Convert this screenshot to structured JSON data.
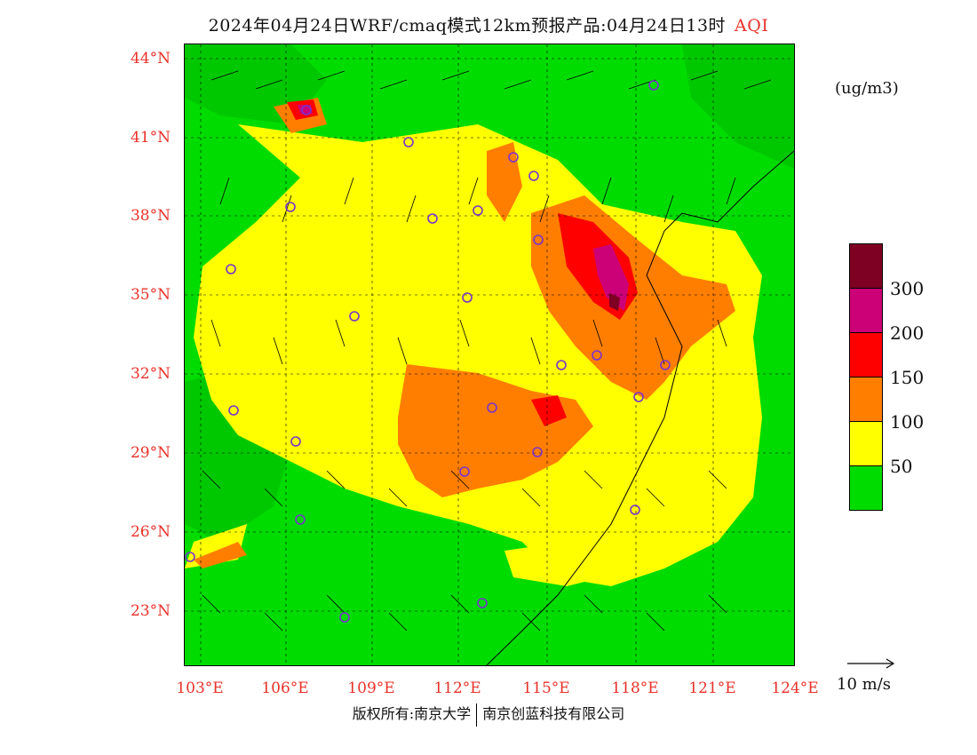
{
  "title": {
    "main": "2024年04月24日WRF/cmaq模式12km预报产品:04月24日13时",
    "variable": "AQI"
  },
  "map": {
    "latitude_labels": [
      "44°N",
      "41°N",
      "38°N",
      "35°N",
      "32°N",
      "29°N",
      "26°N",
      "23°N"
    ],
    "longitude_labels": [
      "103°E",
      "106°E",
      "109°E",
      "112°E",
      "115°E",
      "118°E",
      "121°E",
      "124°E"
    ],
    "region": "Central & East China",
    "background_color": "#00dc00"
  },
  "legend": {
    "unit": "(ug/m3)",
    "colors": [
      "#00dc00",
      "#ffff00",
      "#ff7e00",
      "#ff0000",
      "#cc0077",
      "#7e0023"
    ],
    "labels": [
      "50",
      "100",
      "150",
      "200",
      "300"
    ]
  },
  "wind_reference": {
    "label": "10 m/s"
  },
  "footer": {
    "copyright": "版权所有:南京大学",
    "company": "南京创蓝科技有限公司"
  }
}
